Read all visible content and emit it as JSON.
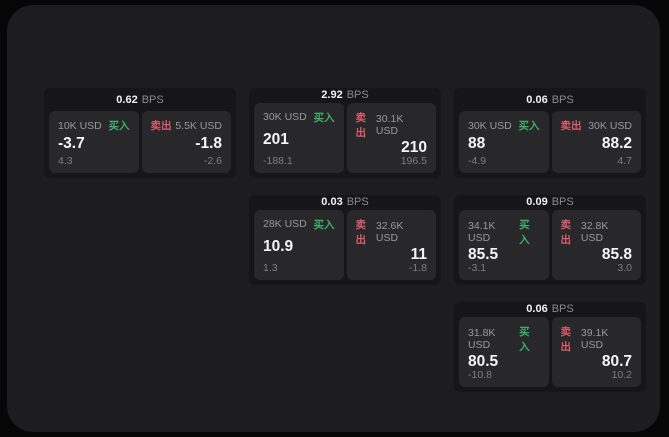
{
  "theme": {
    "page_bg": "#060606",
    "panel_bg": "#1d1d1f",
    "card_bg": "#161618",
    "tile_bg": "#28282b",
    "text_primary": "#f5f5f5",
    "text_secondary": "#98989d",
    "buy_color": "#3fae6a",
    "sell_color": "#d95c6e"
  },
  "labels": {
    "buy": "买入",
    "sell": "卖出",
    "bps_unit": "BPS"
  },
  "cards": [
    {
      "bps": "0.62",
      "buy": {
        "size": "10K USD",
        "price": "-3.7",
        "sub": "4.3"
      },
      "sell": {
        "size": "5.5K USD",
        "price": "-1.8",
        "sub": "-2.6"
      }
    },
    {
      "bps": "2.92",
      "buy": {
        "size": "30K USD",
        "price": "201",
        "sub": "-188.1"
      },
      "sell": {
        "size": "30.1K USD",
        "price": "210",
        "sub": "196.5"
      }
    },
    {
      "bps": "0.06",
      "buy": {
        "size": "30K USD",
        "price": "88",
        "sub": "-4.9"
      },
      "sell": {
        "size": "30K USD",
        "price": "88.2",
        "sub": "4.7"
      }
    },
    {
      "bps": "0.03",
      "buy": {
        "size": "28K USD",
        "price": "10.9",
        "sub": "1.3"
      },
      "sell": {
        "size": "32.6K USD",
        "price": "11",
        "sub": "-1.8"
      }
    },
    {
      "bps": "0.09",
      "buy": {
        "size": "34.1K USD",
        "price": "85.5",
        "sub": "-3.1"
      },
      "sell": {
        "size": "32.8K USD",
        "price": "85.8",
        "sub": "3.0"
      }
    },
    {
      "bps": "0.06",
      "buy": {
        "size": "31.8K USD",
        "price": "80.5",
        "sub": "-10.8"
      },
      "sell": {
        "size": "39.1K USD",
        "price": "80.7",
        "sub": "10.2"
      }
    }
  ]
}
